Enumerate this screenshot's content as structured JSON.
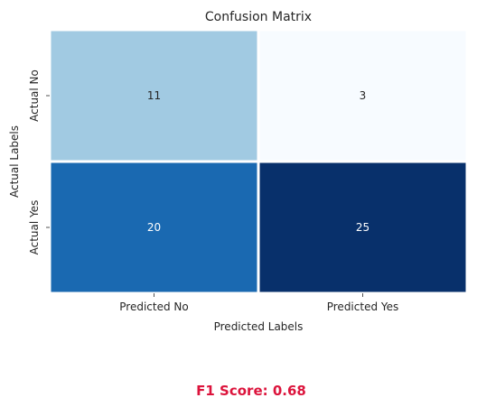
{
  "chart_data": {
    "type": "heatmap",
    "title": "Confusion Matrix",
    "xlabel": "Predicted Labels",
    "ylabel": "Actual Labels",
    "x_categories": [
      "Predicted No",
      "Predicted Yes"
    ],
    "y_categories": [
      "Actual No",
      "Actual Yes"
    ],
    "values": [
      [
        11,
        3
      ],
      [
        20,
        25
      ]
    ],
    "colormap": "Blues",
    "colorbar": false,
    "cell_colors": [
      [
        "#a1cae2",
        "#f7fbff"
      ],
      [
        "#1a69b1",
        "#08306b"
      ]
    ],
    "annotation_colors": [
      [
        "#262626",
        "#262626"
      ],
      [
        "#ffffff",
        "#ffffff"
      ]
    ]
  },
  "footer": {
    "f1_text": "F1 Score: 0.68",
    "color": "#dc143c"
  }
}
